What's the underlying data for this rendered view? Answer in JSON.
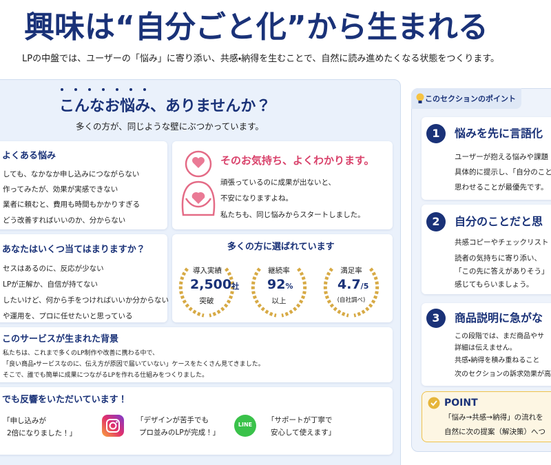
{
  "header": {
    "title": "興味は“自分ごと化”から生まれる",
    "subtitle": "LPの中盤では、ユーザーの「悩み」に寄り添い、共感・納得を生むことで、自然に読み進めたくなる状態をつくります。"
  },
  "problems": {
    "heading": "こんなお悩み、ありませんか？",
    "subheading": "多くの方が、同じような壁にぶつかっています。",
    "common": {
      "title": "よくある悩み",
      "items": [
        "しても、なかなか申し込みにつながらない",
        "作ってみたが、効果が実感できない",
        "業者に頼むと、費用も時間もかかりすぎる",
        "どう改善すればいいのか、分からない"
      ]
    },
    "empathy": {
      "title": "そのお気持ち、よくわかります。",
      "lines": [
        "頑張っているのに成果が出ないと、",
        "不安になりますよね。",
        "私たちも、同じ悩みからスタートしました。"
      ]
    },
    "checklist": {
      "title": "あなたはいくつ当てはまりますか？",
      "items": [
        "セスはあるのに、反応が少ない",
        "LPが正解か、自信が持てない",
        "したいけど、何から手をつければいいか分からない",
        "や運用を、プロに任せたいと思っている"
      ]
    },
    "stats": {
      "title": "多くの方に選ばれています",
      "badges": [
        {
          "label": "導入実績",
          "value": "2,500",
          "unit": "社",
          "note": "突破"
        },
        {
          "label": "継続率",
          "value": "92",
          "unit": "%",
          "note": "以上"
        },
        {
          "label": "満足率",
          "value": "4.7",
          "unit": "/5",
          "note": "(自社調べ)"
        }
      ]
    },
    "origin": {
      "title": "このサービスが生まれた背景",
      "lines": [
        "私たちは、これまで多くのLP制作や改善に携わる中で、",
        "「良い商品・サービスなのに、伝え方が原因で届いていない」ケースをたくさん見てきました。",
        "そこで、誰でも簡単に成果につながるLPを作れる仕組みをつくりました。"
      ]
    },
    "voices": {
      "title": "でも反響をいただいています！",
      "quotes": [
        [
          "「申し込みが",
          "2倍になりました！」"
        ],
        [
          "「デザインが苦手でも",
          "プロ並みのLPが完成！」"
        ],
        [
          "「サポートが丁寧で",
          "安心して使えます」"
        ]
      ],
      "line_icon": "LINE"
    }
  },
  "sidebar": {
    "tab": "このセクションのポイント",
    "points": [
      {
        "number": "1",
        "title": "悩みを先に言語化",
        "lines": [
          "ユーザーが抱える悩みや課題",
          "具体的に提示し、「自分のこと",
          "思わせることが最優先です。"
        ]
      },
      {
        "number": "2",
        "title": "自分のことだと思",
        "lines": [
          "共感コピーやチェックリスト",
          "読者の気持ちに寄り添い、",
          "「この先に答えがありそう」",
          "感じてもらいましょう。"
        ]
      },
      {
        "number": "3",
        "title": "商品説明に急がな",
        "lines": [
          "この段階では、まだ商品やサ",
          "詳細は伝えません。",
          "共感・納得を積み重ねること",
          "次のセクションの訴求効果が高"
        ]
      }
    ],
    "tip": {
      "label": "POINT",
      "lines": [
        "「悩み→共感→納得」の流れを",
        "自然に次の提案（解決策）へつ"
      ]
    }
  }
}
